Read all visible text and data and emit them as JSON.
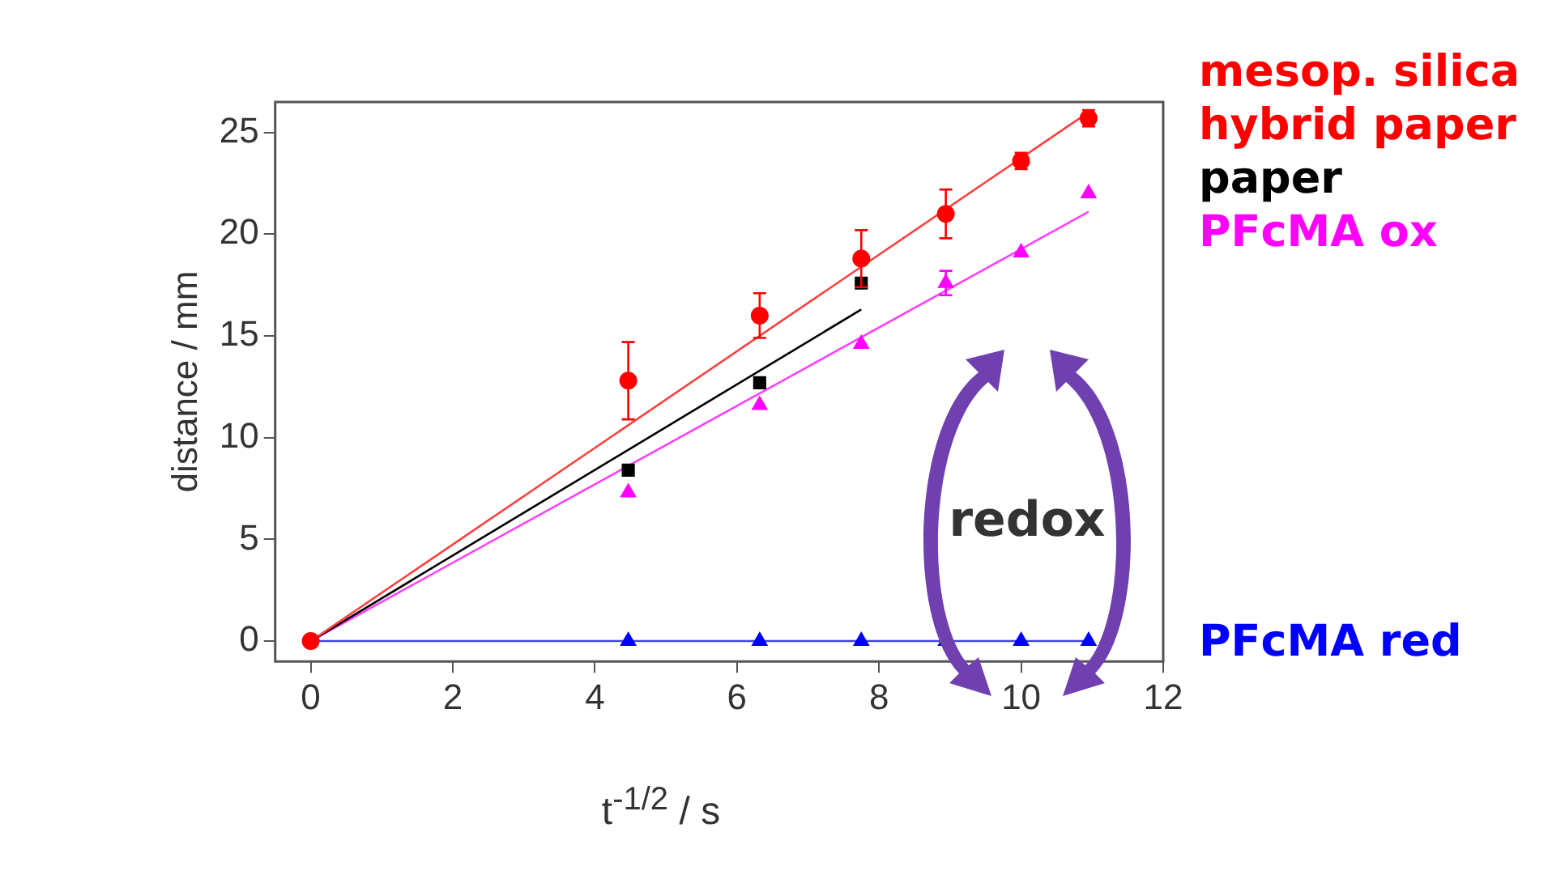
{
  "chart_data": {
    "type": "scatter",
    "xlabel": "t$^{-1/2}$ / s",
    "ylabel": "distance / mm",
    "xlim": [
      -0.5,
      12
    ],
    "xticks": [
      0,
      2,
      4,
      6,
      8,
      10,
      12
    ],
    "ylim": [
      -1,
      26.5
    ],
    "yticks": [
      0,
      5,
      10,
      15,
      20,
      25
    ],
    "grid": false,
    "legend": "right",
    "annotations": [
      "redox"
    ],
    "series": [
      {
        "name": "mesop. silica hybrid paper",
        "color": "#ff0000",
        "marker": "circle",
        "x": [
          0,
          4.47,
          6.32,
          7.75,
          8.94,
          10,
          10.95
        ],
        "values": [
          0,
          12.8,
          16,
          18.8,
          21,
          23.6,
          25.7
        ],
        "errors": [
          null,
          1.9,
          1.1,
          1.4,
          1.2,
          0.4,
          0.4
        ]
      },
      {
        "name": "paper",
        "color": "#000000",
        "marker": "square",
        "x": [
          4.47,
          6.32,
          7.75
        ],
        "values": [
          8.4,
          12.7,
          17.6
        ]
      },
      {
        "name": "PFcMA ox",
        "color": "#ff00ff",
        "marker": "triangle",
        "x": [
          4.47,
          6.32,
          7.75,
          8.94,
          10,
          10.95
        ],
        "values": [
          7.3,
          11.6,
          14.6,
          17.6,
          19.1,
          22
        ],
        "errors": [
          null,
          null,
          null,
          0.6,
          null,
          null
        ]
      },
      {
        "name": "PFcMA red",
        "color": "#0000ff",
        "marker": "triangle",
        "x": [
          4.47,
          6.32,
          7.75,
          8.94,
          10,
          10.95
        ],
        "values": [
          0,
          0,
          0,
          0,
          0,
          0
        ]
      },
      {
        "type": "line",
        "color": "#ff4040",
        "marker": "none",
        "x": [
          0,
          10.95
        ],
        "values": [
          0,
          26
        ]
      },
      {
        "type": "line",
        "color": "#000000",
        "marker": "none",
        "x": [
          0,
          7.75
        ],
        "values": [
          0,
          16.3
        ]
      },
      {
        "type": "line",
        "color": "#ff40ff",
        "marker": "none",
        "x": [
          0,
          10.95
        ],
        "values": [
          0,
          21.1
        ]
      },
      {
        "type": "line",
        "color": "#4040ff",
        "marker": "none",
        "x": [
          0,
          10.95
        ],
        "values": [
          0,
          0
        ]
      }
    ]
  }
}
